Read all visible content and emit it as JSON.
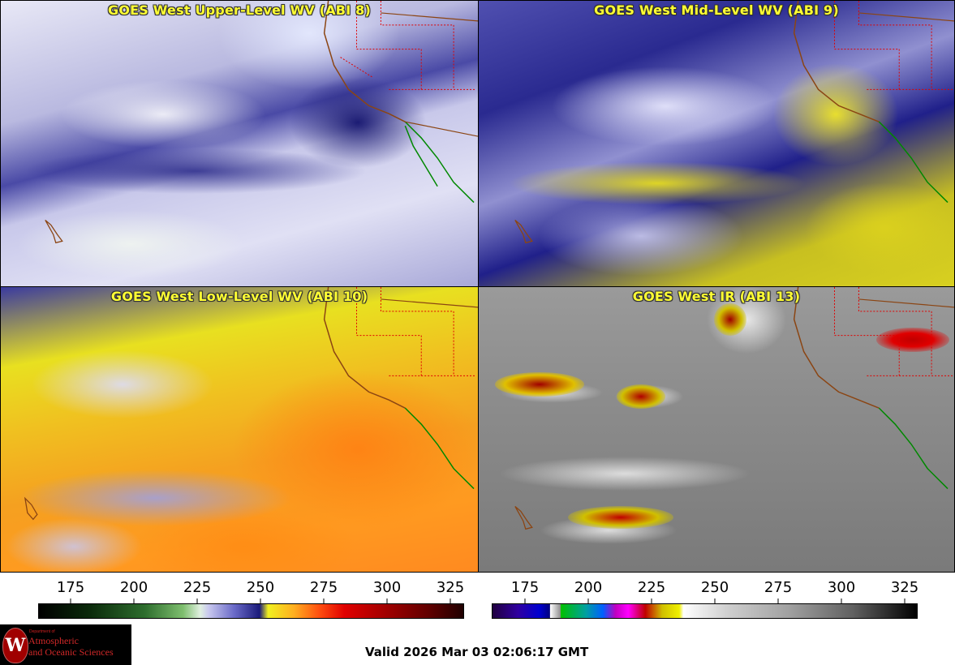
{
  "panels": [
    {
      "title": "GOES West Upper-Level WV (ABI 8)"
    },
    {
      "title": "GOES West Mid-Level WV (ABI 9)"
    },
    {
      "title": "GOES West Low-Level WV (ABI 10)"
    },
    {
      "title": "GOES West IR (ABI 13)"
    }
  ],
  "colorbars": {
    "left": {
      "ticks": [
        "175",
        "200",
        "225",
        "250",
        "275",
        "300",
        "325"
      ]
    },
    "right": {
      "ticks": [
        "175",
        "200",
        "225",
        "250",
        "275",
        "300",
        "325"
      ]
    }
  },
  "logo": {
    "department": "Department of",
    "line1": "Atmospheric",
    "line2": "and Oceanic Sciences",
    "seal": "W"
  },
  "valid_time": "Valid 2026 Mar 03 02:06:17 GMT",
  "colors": {
    "title_text": "#ffff33",
    "coastline": "#8b4513",
    "state_borders": "#e00000",
    "mexico_coast": "#008800"
  }
}
